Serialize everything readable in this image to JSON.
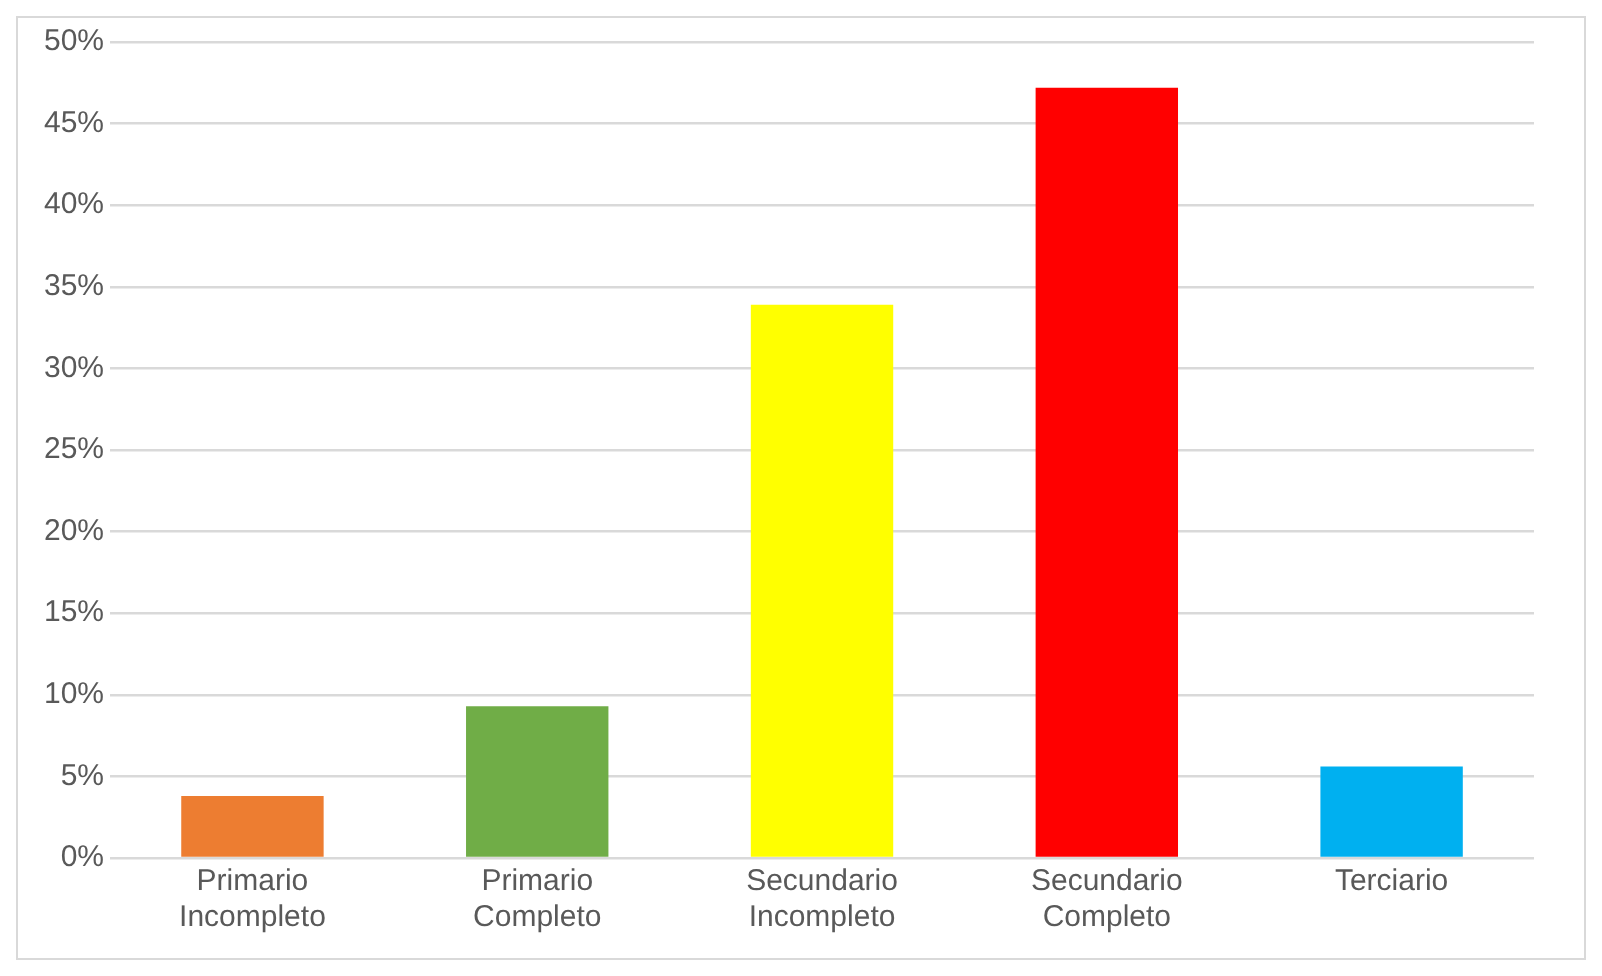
{
  "chart_data": {
    "type": "bar",
    "categories": [
      "Primario Incompleto",
      "Primario Completo",
      "Secundario Incompleto",
      "Secundario Completo",
      "Terciario"
    ],
    "values": [
      3.8,
      9.3,
      33.9,
      47.2,
      5.6
    ],
    "colors": [
      "#ed7d31",
      "#70ad47",
      "#ffff00",
      "#ff0000",
      "#00b0f0"
    ],
    "ylim": [
      0,
      50
    ],
    "yticks": [
      {
        "value": 0,
        "label": "0%"
      },
      {
        "value": 5,
        "label": "5%"
      },
      {
        "value": 10,
        "label": "10%"
      },
      {
        "value": 15,
        "label": "15%"
      },
      {
        "value": 20,
        "label": "20%"
      },
      {
        "value": 25,
        "label": "25%"
      },
      {
        "value": 30,
        "label": "30%"
      },
      {
        "value": 35,
        "label": "35%"
      },
      {
        "value": 40,
        "label": "40%"
      },
      {
        "value": 45,
        "label": "45%"
      },
      {
        "value": 50,
        "label": "50%"
      }
    ],
    "grid": "y"
  }
}
